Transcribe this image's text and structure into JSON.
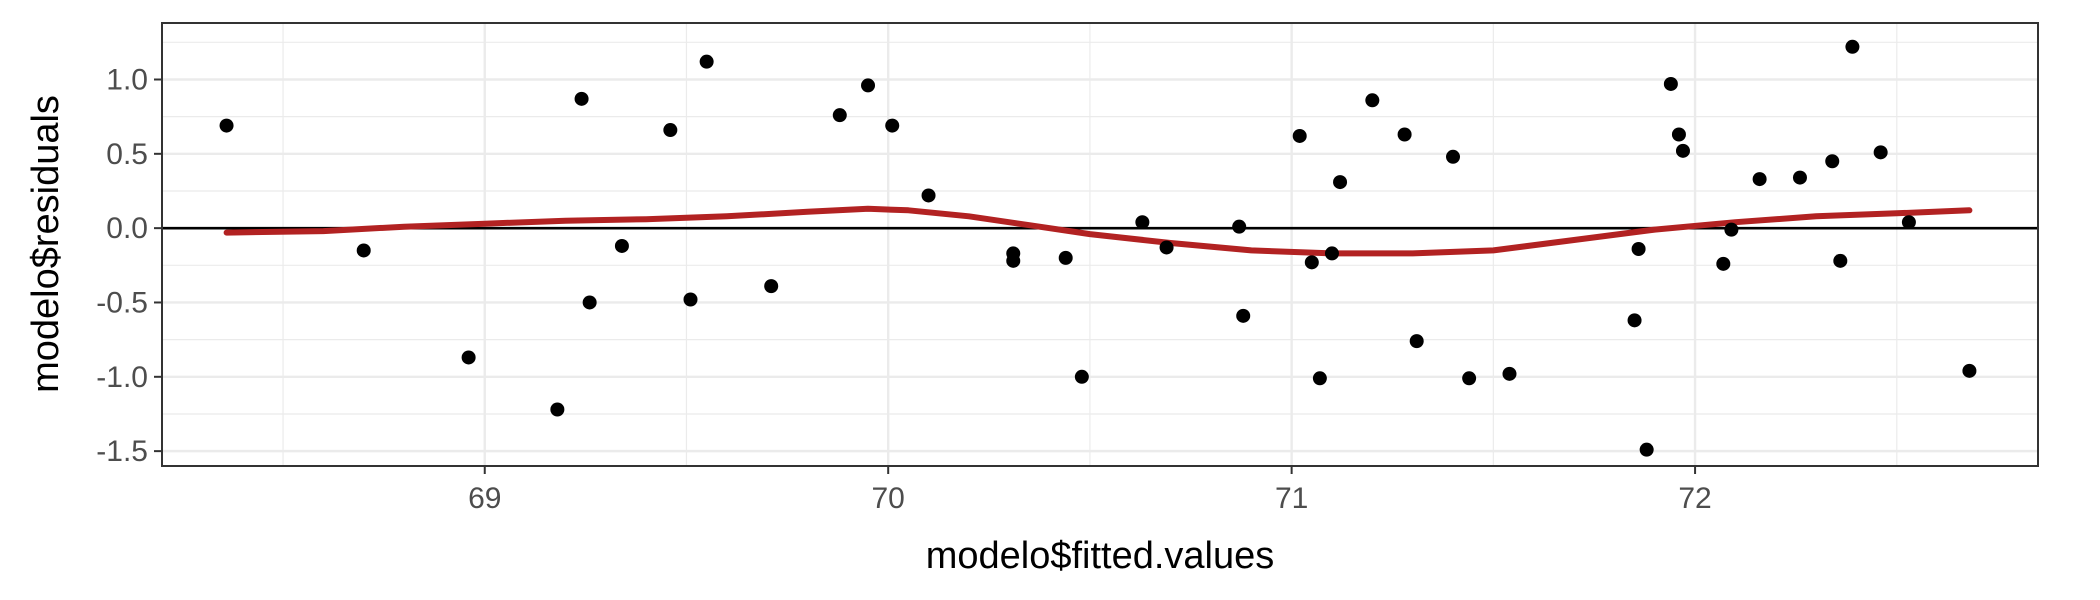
{
  "chart_data": {
    "type": "scatter",
    "xlabel": "modelo$fitted.values",
    "ylabel": "modelo$residuals",
    "xlim": [
      68.2,
      72.85
    ],
    "ylim": [
      -1.6,
      1.38
    ],
    "x_ticks": [
      69,
      70,
      71,
      72
    ],
    "x_minor_ticks": [
      68.5,
      69.5,
      70.5,
      71.5,
      72.5
    ],
    "y_ticks": [
      1.0,
      0.5,
      0.0,
      -0.5,
      -1.0,
      -1.5
    ],
    "y_tick_labels": [
      "1.0",
      "0.5",
      "0.0",
      "-0.5",
      "-1.0",
      "-1.5"
    ],
    "y_minor_ticks": [
      1.25,
      0.75,
      0.25,
      -0.25,
      -0.75,
      -1.25
    ],
    "grid": true,
    "reference_line_y": 0,
    "colors": {
      "points": "#000000",
      "smooth": "#b22222",
      "grid": "#ebebeb",
      "panel_border": "#333333",
      "reference_line": "#000000"
    },
    "points": [
      {
        "x": 68.36,
        "y": 0.69
      },
      {
        "x": 68.7,
        "y": -0.15
      },
      {
        "x": 68.96,
        "y": -0.87
      },
      {
        "x": 69.18,
        "y": -1.22
      },
      {
        "x": 69.24,
        "y": 0.87
      },
      {
        "x": 69.26,
        "y": -0.5
      },
      {
        "x": 69.34,
        "y": -0.12
      },
      {
        "x": 69.46,
        "y": 0.66
      },
      {
        "x": 69.51,
        "y": -0.48
      },
      {
        "x": 69.55,
        "y": 1.12
      },
      {
        "x": 69.71,
        "y": -0.39
      },
      {
        "x": 69.88,
        "y": 0.76
      },
      {
        "x": 69.95,
        "y": 0.96
      },
      {
        "x": 70.01,
        "y": 0.69
      },
      {
        "x": 70.1,
        "y": 0.22
      },
      {
        "x": 70.31,
        "y": -0.17
      },
      {
        "x": 70.31,
        "y": -0.22
      },
      {
        "x": 70.44,
        "y": -0.2
      },
      {
        "x": 70.48,
        "y": -1.0
      },
      {
        "x": 70.63,
        "y": 0.04
      },
      {
        "x": 70.69,
        "y": -0.13
      },
      {
        "x": 70.87,
        "y": 0.01
      },
      {
        "x": 70.88,
        "y": -0.59
      },
      {
        "x": 71.02,
        "y": 0.62
      },
      {
        "x": 71.05,
        "y": -0.23
      },
      {
        "x": 71.07,
        "y": -1.01
      },
      {
        "x": 71.1,
        "y": -0.17
      },
      {
        "x": 71.12,
        "y": 0.31
      },
      {
        "x": 71.2,
        "y": 0.86
      },
      {
        "x": 71.28,
        "y": 0.63
      },
      {
        "x": 71.31,
        "y": -0.76
      },
      {
        "x": 71.4,
        "y": 0.48
      },
      {
        "x": 71.44,
        "y": -1.01
      },
      {
        "x": 71.54,
        "y": -0.98
      },
      {
        "x": 71.85,
        "y": -0.62
      },
      {
        "x": 71.86,
        "y": -0.14
      },
      {
        "x": 71.88,
        "y": -1.49
      },
      {
        "x": 71.94,
        "y": 0.97
      },
      {
        "x": 71.96,
        "y": 0.63
      },
      {
        "x": 71.97,
        "y": 0.52
      },
      {
        "x": 72.07,
        "y": -0.24
      },
      {
        "x": 72.09,
        "y": -0.01
      },
      {
        "x": 72.16,
        "y": 0.33
      },
      {
        "x": 72.26,
        "y": 0.34
      },
      {
        "x": 72.34,
        "y": 0.45
      },
      {
        "x": 72.36,
        "y": -0.22
      },
      {
        "x": 72.39,
        "y": 1.22
      },
      {
        "x": 72.46,
        "y": 0.51
      },
      {
        "x": 72.53,
        "y": 0.04
      },
      {
        "x": 72.68,
        "y": -0.96
      }
    ],
    "smooth_line": [
      {
        "x": 68.36,
        "y": -0.03
      },
      {
        "x": 68.6,
        "y": -0.02
      },
      {
        "x": 68.8,
        "y": 0.01
      },
      {
        "x": 69.0,
        "y": 0.03
      },
      {
        "x": 69.2,
        "y": 0.05
      },
      {
        "x": 69.4,
        "y": 0.06
      },
      {
        "x": 69.6,
        "y": 0.08
      },
      {
        "x": 69.8,
        "y": 0.11
      },
      {
        "x": 69.95,
        "y": 0.13
      },
      {
        "x": 70.05,
        "y": 0.12
      },
      {
        "x": 70.2,
        "y": 0.08
      },
      {
        "x": 70.35,
        "y": 0.02
      },
      {
        "x": 70.5,
        "y": -0.04
      },
      {
        "x": 70.7,
        "y": -0.1
      },
      {
        "x": 70.9,
        "y": -0.15
      },
      {
        "x": 71.1,
        "y": -0.17
      },
      {
        "x": 71.3,
        "y": -0.17
      },
      {
        "x": 71.5,
        "y": -0.15
      },
      {
        "x": 71.7,
        "y": -0.08
      },
      {
        "x": 71.9,
        "y": -0.01
      },
      {
        "x": 72.1,
        "y": 0.04
      },
      {
        "x": 72.3,
        "y": 0.08
      },
      {
        "x": 72.5,
        "y": 0.1
      },
      {
        "x": 72.68,
        "y": 0.12
      }
    ]
  }
}
